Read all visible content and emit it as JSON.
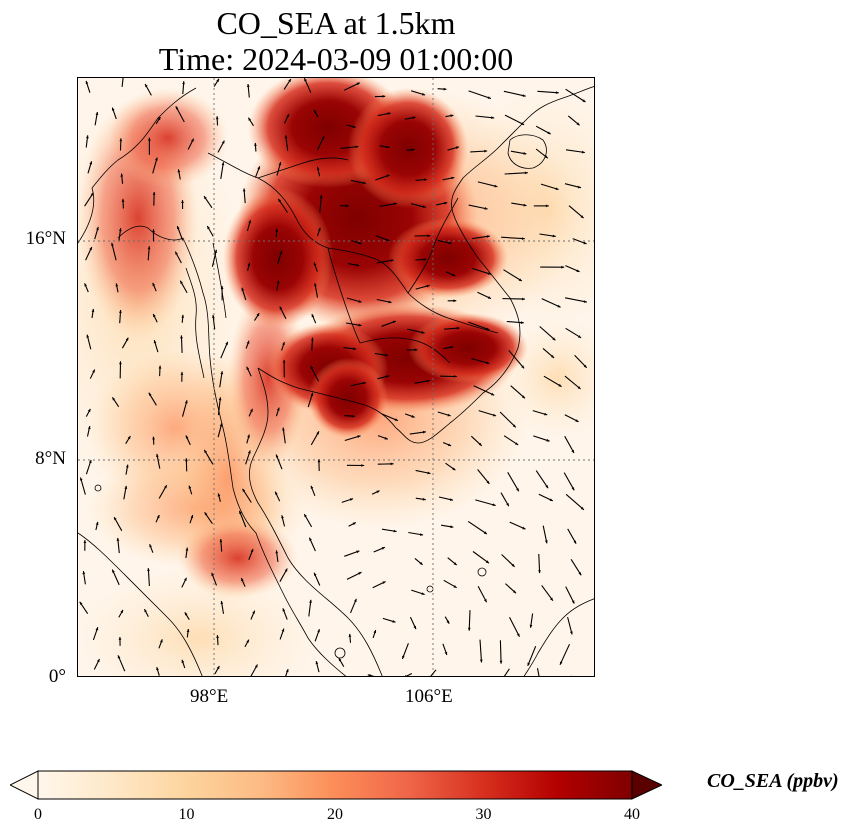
{
  "title_line1": "CO_SEA at 1.5km",
  "title_line2": "Time: 2024-03-09 01:00:00",
  "map": {
    "lat_ticks": [
      "16°N",
      "8°N",
      "0°"
    ],
    "lon_ticks": [
      "98°E",
      "106°E"
    ],
    "gridlines": "dotted"
  },
  "colorbar": {
    "label": "CO_SEA (ppbv)",
    "ticks": [
      "0",
      "10",
      "20",
      "30",
      "40"
    ],
    "range": [
      0,
      40
    ],
    "colormap": "OrRd",
    "extend": "both",
    "colors": [
      "#fff7ec",
      "#fee8c8",
      "#fdd49e",
      "#fdbb84",
      "#fc8d59",
      "#ef6548",
      "#d7301f",
      "#b30000",
      "#7f0000"
    ]
  }
}
